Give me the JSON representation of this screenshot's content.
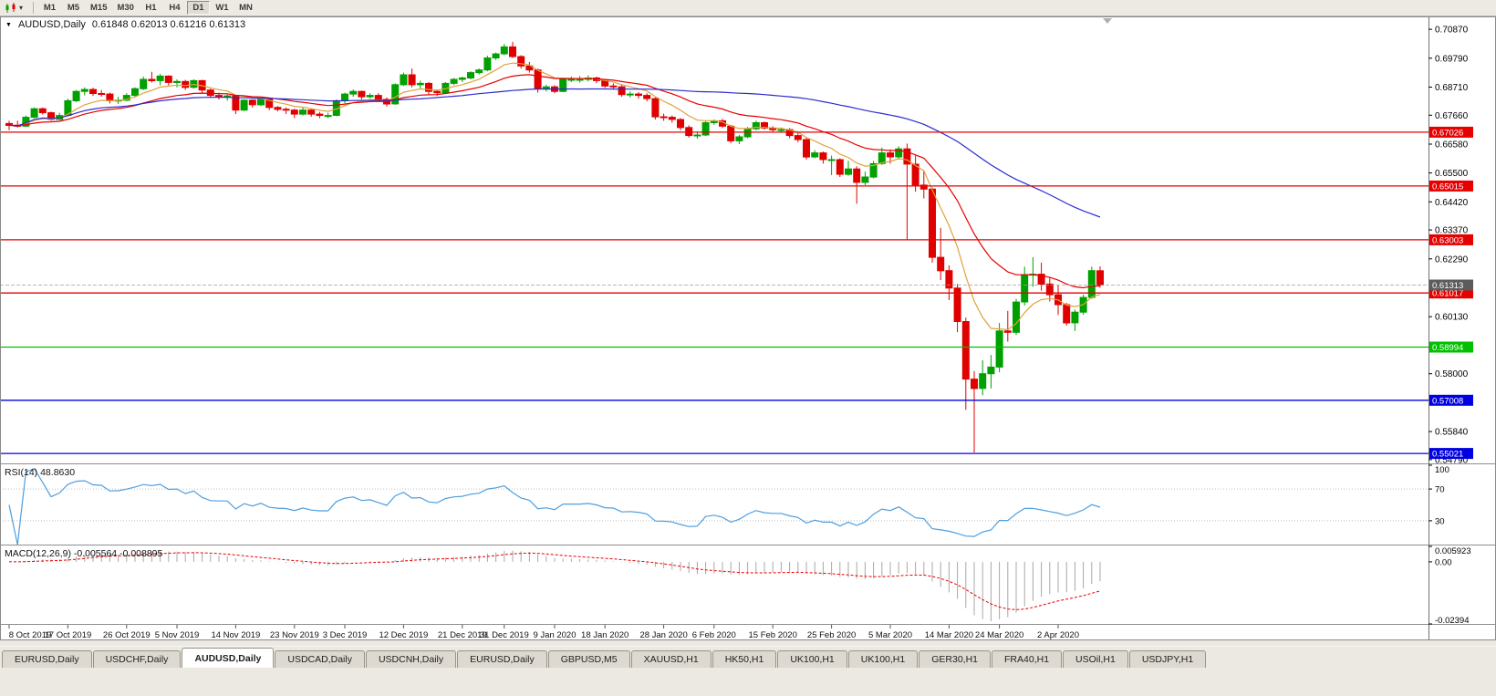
{
  "toolbar": {
    "timeframes": [
      {
        "label": "M1",
        "active": false
      },
      {
        "label": "M5",
        "active": false
      },
      {
        "label": "M15",
        "active": false
      },
      {
        "label": "M30",
        "active": false
      },
      {
        "label": "H1",
        "active": false
      },
      {
        "label": "H4",
        "active": false
      },
      {
        "label": "D1",
        "active": true
      },
      {
        "label": "W1",
        "active": false
      },
      {
        "label": "MN",
        "active": false
      }
    ]
  },
  "chart": {
    "header_symbol": "AUDUSD,Daily",
    "header_ohlc": "0.61848 0.62013 0.61216 0.61313"
  },
  "indicators": {
    "rsi_label": "RSI(14) 48.8630",
    "macd_label": "MACD(12,26,9) -0.005564 -0.008895"
  },
  "tabs": [
    {
      "label": "EURUSD,Daily",
      "active": false
    },
    {
      "label": "USDCHF,Daily",
      "active": false
    },
    {
      "label": "AUDUSD,Daily",
      "active": true
    },
    {
      "label": "USDCAD,Daily",
      "active": false
    },
    {
      "label": "USDCNH,Daily",
      "active": false
    },
    {
      "label": "EURUSD,Daily",
      "active": false
    },
    {
      "label": "GBPUSD,M5",
      "active": false
    },
    {
      "label": "XAUUSD,H1",
      "active": false
    },
    {
      "label": "HK50,H1",
      "active": false
    },
    {
      "label": "UK100,H1",
      "active": false
    },
    {
      "label": "UK100,H1",
      "active": false
    },
    {
      "label": "GER30,H1",
      "active": false
    },
    {
      "label": "FRA40,H1",
      "active": false
    },
    {
      "label": "USOil,H1",
      "active": false
    },
    {
      "label": "USDJPY,H1",
      "active": false
    }
  ],
  "chart_data": {
    "type": "candlestick",
    "title": "AUDUSD,Daily",
    "ohlc_current": {
      "open": 0.61848,
      "high": 0.62013,
      "low": 0.61216,
      "close": 0.61313
    },
    "price_range": {
      "top": 0.7135,
      "bottom": 0.5465
    },
    "price_axis_ticks": [
      "0.70870",
      "0.69790",
      "0.68710",
      "0.67660",
      "0.66580",
      "0.65500",
      "0.64420",
      "0.63370",
      "0.62290",
      "0.60130",
      "0.58000",
      "0.55840",
      "0.54790"
    ],
    "current_price": {
      "value": 0.61313,
      "label": "0.61313"
    },
    "hlines": [
      {
        "price": 0.67026,
        "label": "0.67026",
        "color": "#e60000"
      },
      {
        "price": 0.65015,
        "label": "0.65015",
        "color": "#e60000"
      },
      {
        "price": 0.63003,
        "label": "0.63003",
        "color": "#e60000"
      },
      {
        "price": 0.61017,
        "label": "0.61017",
        "color": "#e60000"
      },
      {
        "price": 0.58994,
        "label": "0.58994",
        "color": "#00c000"
      },
      {
        "price": 0.57008,
        "label": "0.57008",
        "color": "#0000e0"
      },
      {
        "price": 0.55021,
        "label": "0.55021",
        "color": "#0000e0"
      }
    ],
    "date_ticks": [
      [
        0,
        "8 Oct 2019"
      ],
      [
        7,
        "17 Oct 2019"
      ],
      [
        14,
        "26 Oct 2019"
      ],
      [
        20,
        "5 Nov 2019"
      ],
      [
        27,
        "14 Nov 2019"
      ],
      [
        34,
        "23 Nov 2019"
      ],
      [
        40,
        "3 Dec 2019"
      ],
      [
        47,
        "12 Dec 2019"
      ],
      [
        54,
        "21 Dec 2019"
      ],
      [
        59,
        "31 Dec 2019"
      ],
      [
        65,
        "9 Jan 2020"
      ],
      [
        71,
        "18 Jan 2020"
      ],
      [
        78,
        "28 Jan 2020"
      ],
      [
        84,
        "6 Feb 2020"
      ],
      [
        91,
        "15 Feb 2020"
      ],
      [
        98,
        "25 Feb 2020"
      ],
      [
        105,
        "5 Mar 2020"
      ],
      [
        112,
        "14 Mar 2020"
      ],
      [
        118,
        "24 Mar 2020"
      ],
      [
        125,
        "2 Apr 2020"
      ]
    ],
    "moving_averages": [
      {
        "name": "fast-ema-8",
        "method": "ema",
        "period": 8,
        "color": "#dfa23b"
      },
      {
        "name": "mid-ema-20",
        "method": "ema",
        "period": 20,
        "color": "#e60000"
      },
      {
        "name": "slow-sma-50",
        "method": "sma",
        "period": 50,
        "color": "#2b2bd0"
      }
    ],
    "rsi": {
      "period": 14,
      "value": "48.8630",
      "range": [
        0,
        100
      ],
      "levels": [
        70,
        30
      ],
      "axis_ticks": [
        "100",
        "70",
        "30"
      ],
      "color": "#4d9fe0"
    },
    "macd": {
      "params": "12,26,9",
      "value": "-0.005564",
      "signal_value": "-0.008895",
      "axis_max": 0.005923,
      "axis_min": -0.02394,
      "axis_ticks": [
        {
          "v": 0.005923,
          "label": "0.005923"
        },
        {
          "v": 0,
          "label": "0.00"
        },
        {
          "v": -0.02394,
          "label": "-0.02394"
        }
      ],
      "hist_color": "#a8a8a8",
      "signal_color": "#e60000"
    },
    "colors": {
      "up": "#00a000",
      "down": "#e00000",
      "bid_line": "#9aa0a6",
      "axis_text": "#000000"
    },
    "candles": [
      [
        0.6735,
        0.6745,
        0.671,
        0.6728
      ],
      [
        0.6728,
        0.6745,
        0.672,
        0.6725
      ],
      [
        0.6725,
        0.6765,
        0.6722,
        0.6758
      ],
      [
        0.6758,
        0.6795,
        0.6755,
        0.679
      ],
      [
        0.679,
        0.6795,
        0.6768,
        0.6775
      ],
      [
        0.6775,
        0.678,
        0.6745,
        0.675
      ],
      [
        0.675,
        0.6775,
        0.6748,
        0.6765
      ],
      [
        0.6765,
        0.6828,
        0.6762,
        0.682
      ],
      [
        0.682,
        0.686,
        0.6815,
        0.6855
      ],
      [
        0.6855,
        0.687,
        0.684,
        0.6862
      ],
      [
        0.6862,
        0.6868,
        0.6838,
        0.6847
      ],
      [
        0.6847,
        0.686,
        0.6835,
        0.6845
      ],
      [
        0.6845,
        0.685,
        0.681,
        0.682
      ],
      [
        0.682,
        0.6835,
        0.6808,
        0.6822
      ],
      [
        0.6822,
        0.6848,
        0.6818,
        0.684
      ],
      [
        0.684,
        0.687,
        0.6835,
        0.6865
      ],
      [
        0.6865,
        0.691,
        0.686,
        0.69
      ],
      [
        0.69,
        0.6928,
        0.6888,
        0.6895
      ],
      [
        0.6895,
        0.692,
        0.6878,
        0.6912
      ],
      [
        0.6912,
        0.6915,
        0.6878,
        0.6888
      ],
      [
        0.6888,
        0.69,
        0.687,
        0.6892
      ],
      [
        0.6892,
        0.6898,
        0.686,
        0.687
      ],
      [
        0.687,
        0.69,
        0.6865,
        0.6895
      ],
      [
        0.6895,
        0.6898,
        0.685,
        0.686
      ],
      [
        0.686,
        0.6865,
        0.683,
        0.684
      ],
      [
        0.684,
        0.685,
        0.6825,
        0.6838
      ],
      [
        0.6838,
        0.6845,
        0.682,
        0.6838
      ],
      [
        0.6838,
        0.684,
        0.677,
        0.6785
      ],
      [
        0.6785,
        0.6825,
        0.6782,
        0.6822
      ],
      [
        0.6822,
        0.6825,
        0.6795,
        0.6805
      ],
      [
        0.6805,
        0.683,
        0.68,
        0.6825
      ],
      [
        0.6825,
        0.6828,
        0.6785,
        0.6795
      ],
      [
        0.6795,
        0.68,
        0.678,
        0.6788
      ],
      [
        0.6788,
        0.6795,
        0.677,
        0.6785
      ],
      [
        0.6785,
        0.679,
        0.6755,
        0.677
      ],
      [
        0.677,
        0.6795,
        0.6765,
        0.6785
      ],
      [
        0.6785,
        0.679,
        0.676,
        0.677
      ],
      [
        0.677,
        0.6778,
        0.6755,
        0.6765
      ],
      [
        0.6765,
        0.6775,
        0.6755,
        0.6765
      ],
      [
        0.6765,
        0.6825,
        0.6762,
        0.682
      ],
      [
        0.682,
        0.685,
        0.681,
        0.6845
      ],
      [
        0.6845,
        0.6862,
        0.6835,
        0.6855
      ],
      [
        0.6855,
        0.6858,
        0.6825,
        0.6835
      ],
      [
        0.6835,
        0.6848,
        0.6828,
        0.684
      ],
      [
        0.684,
        0.6848,
        0.6818,
        0.6825
      ],
      [
        0.6825,
        0.6832,
        0.6798,
        0.6808
      ],
      [
        0.6808,
        0.6885,
        0.6805,
        0.688
      ],
      [
        0.688,
        0.6925,
        0.6875,
        0.6917
      ],
      [
        0.6917,
        0.694,
        0.687,
        0.688
      ],
      [
        0.688,
        0.6895,
        0.6865,
        0.6885
      ],
      [
        0.6885,
        0.689,
        0.6845,
        0.6855
      ],
      [
        0.6855,
        0.6862,
        0.6838,
        0.685
      ],
      [
        0.685,
        0.689,
        0.6845,
        0.6885
      ],
      [
        0.6885,
        0.6905,
        0.6878,
        0.69
      ],
      [
        0.69,
        0.691,
        0.689,
        0.6905
      ],
      [
        0.6905,
        0.693,
        0.69,
        0.6925
      ],
      [
        0.6925,
        0.694,
        0.6918,
        0.6935
      ],
      [
        0.6935,
        0.6988,
        0.693,
        0.698
      ],
      [
        0.698,
        0.7,
        0.6972,
        0.6995
      ],
      [
        0.6995,
        0.7032,
        0.699,
        0.7021
      ],
      [
        0.7021,
        0.704,
        0.698,
        0.6985
      ],
      [
        0.6985,
        0.699,
        0.694,
        0.695
      ],
      [
        0.695,
        0.6965,
        0.6925,
        0.6935
      ],
      [
        0.6935,
        0.694,
        0.685,
        0.6865
      ],
      [
        0.6865,
        0.688,
        0.6855,
        0.6872
      ],
      [
        0.6872,
        0.6878,
        0.6848,
        0.6855
      ],
      [
        0.6855,
        0.6905,
        0.6852,
        0.69
      ],
      [
        0.69,
        0.691,
        0.689,
        0.69
      ],
      [
        0.69,
        0.6912,
        0.6888,
        0.69
      ],
      [
        0.69,
        0.6915,
        0.6892,
        0.6905
      ],
      [
        0.6905,
        0.691,
        0.6885,
        0.6895
      ],
      [
        0.6895,
        0.69,
        0.6868,
        0.6875
      ],
      [
        0.6875,
        0.6885,
        0.6862,
        0.6872
      ],
      [
        0.6872,
        0.6878,
        0.6835,
        0.6843
      ],
      [
        0.6843,
        0.6855,
        0.6832,
        0.6845
      ],
      [
        0.6845,
        0.6852,
        0.6828,
        0.684
      ],
      [
        0.684,
        0.6848,
        0.6818,
        0.6828
      ],
      [
        0.6828,
        0.6832,
        0.675,
        0.676
      ],
      [
        0.676,
        0.6772,
        0.6745,
        0.6758
      ],
      [
        0.6758,
        0.6765,
        0.6738,
        0.675
      ],
      [
        0.675,
        0.6755,
        0.671,
        0.672
      ],
      [
        0.672,
        0.6728,
        0.6682,
        0.669
      ],
      [
        0.669,
        0.6705,
        0.6678,
        0.6692
      ],
      [
        0.6692,
        0.6745,
        0.6688,
        0.6738
      ],
      [
        0.6738,
        0.675,
        0.673,
        0.6745
      ],
      [
        0.6745,
        0.6752,
        0.6718,
        0.6725
      ],
      [
        0.6725,
        0.673,
        0.6662,
        0.667
      ],
      [
        0.667,
        0.6692,
        0.6658,
        0.6685
      ],
      [
        0.6685,
        0.6722,
        0.668,
        0.6715
      ],
      [
        0.6715,
        0.6745,
        0.671,
        0.6738
      ],
      [
        0.6738,
        0.6742,
        0.6712,
        0.6718
      ],
      [
        0.6718,
        0.6725,
        0.67,
        0.6712
      ],
      [
        0.6712,
        0.672,
        0.67,
        0.6712
      ],
      [
        0.6712,
        0.6718,
        0.668,
        0.669
      ],
      [
        0.669,
        0.67,
        0.6665,
        0.6675
      ],
      [
        0.6675,
        0.668,
        0.66,
        0.661
      ],
      [
        0.661,
        0.6635,
        0.6605,
        0.6625
      ],
      [
        0.6625,
        0.663,
        0.6585,
        0.66
      ],
      [
        0.66,
        0.6615,
        0.6542,
        0.66
      ],
      [
        0.66,
        0.6605,
        0.6535,
        0.6545
      ],
      [
        0.6545,
        0.6595,
        0.654,
        0.6565
      ],
      [
        0.6565,
        0.6575,
        0.6435,
        0.6515
      ],
      [
        0.6515,
        0.6555,
        0.6505,
        0.6535
      ],
      [
        0.6535,
        0.6595,
        0.653,
        0.6585
      ],
      [
        0.6585,
        0.6645,
        0.658,
        0.6625
      ],
      [
        0.6625,
        0.6638,
        0.6585,
        0.661
      ],
      [
        0.661,
        0.665,
        0.66,
        0.664
      ],
      [
        0.664,
        0.666,
        0.63,
        0.6583
      ],
      [
        0.6583,
        0.6615,
        0.648,
        0.6505
      ],
      [
        0.6505,
        0.656,
        0.6455,
        0.649
      ],
      [
        0.649,
        0.6495,
        0.6215,
        0.6235
      ],
      [
        0.6235,
        0.6345,
        0.615,
        0.6185
      ],
      [
        0.6185,
        0.6205,
        0.6075,
        0.612
      ],
      [
        0.612,
        0.6135,
        0.5955,
        0.5995
      ],
      [
        0.5995,
        0.601,
        0.5665,
        0.578
      ],
      [
        0.578,
        0.581,
        0.5506,
        0.5745
      ],
      [
        0.5745,
        0.585,
        0.572,
        0.58
      ],
      [
        0.58,
        0.587,
        0.5745,
        0.5825
      ],
      [
        0.5825,
        0.599,
        0.5805,
        0.596
      ],
      [
        0.596,
        0.6035,
        0.592,
        0.5955
      ],
      [
        0.5955,
        0.608,
        0.5945,
        0.6068
      ],
      [
        0.6068,
        0.62,
        0.6055,
        0.617
      ],
      [
        0.617,
        0.6235,
        0.6125,
        0.6172
      ],
      [
        0.6172,
        0.6215,
        0.611,
        0.6135
      ],
      [
        0.6135,
        0.616,
        0.607,
        0.6095
      ],
      [
        0.6095,
        0.613,
        0.602,
        0.6058
      ],
      [
        0.6058,
        0.6065,
        0.598,
        0.599
      ],
      [
        0.599,
        0.604,
        0.596,
        0.603
      ],
      [
        0.603,
        0.6095,
        0.602,
        0.6085
      ],
      [
        0.6085,
        0.62,
        0.608,
        0.6185
      ],
      [
        0.61848,
        0.62013,
        0.61216,
        0.61313
      ]
    ]
  }
}
